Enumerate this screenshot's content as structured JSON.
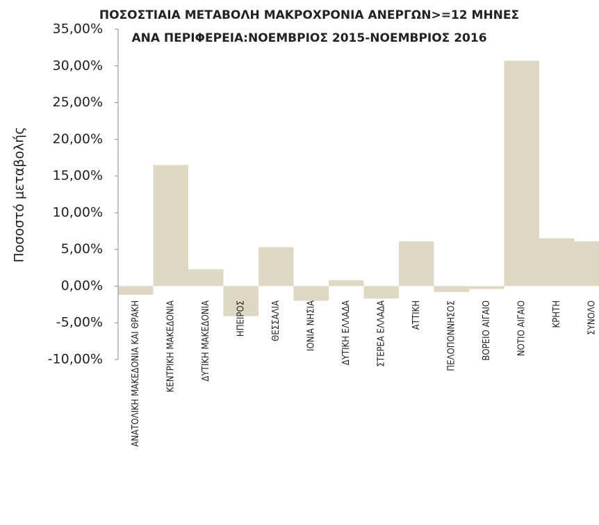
{
  "chart_data": {
    "type": "bar",
    "title": [
      "ΠΟΣΟΣΤΙΑΙΑ ΜΕΤΑΒΟΛΗ ΜΑΚΡΟΧΡΟΝΙΑ ΑΝΕΡΓΩΝ>=12 ΜΗΝΕΣ",
      "ΑΝΑ ΠΕΡΙΦΕΡΕΙΑ:ΝΟΕΜΒΡΙΟΣ 2015-ΝΟΕΜΒΡΙΟΣ 2016"
    ],
    "y_label": "Ποσοστό μεταβολής",
    "categories": [
      "ΑΝΑΤΟΛΙΚΗ ΜΑΚΕΔΟΝΙΑ ΚΑΙ ΘΡΑΚΗ",
      "ΚΕΝΤΡΙΚΗ ΜΑΚΕΔΟΝΙΑ",
      "ΔΥΤΙΚΗ ΜΑΚΕΔΟΝΙΑ",
      "ΗΠΕΙΡΟΣ",
      "ΘΕΣΣΑΛΙΑ",
      "ΙΟΝΙΑ ΝΗΣΙΑ",
      "ΔΥΤΙΚΗ ΕΛΛΑΔΑ",
      "ΣΤΕΡΕΑ ΕΛΛΑΔΑ",
      "ΑΤΤΙΚΗ",
      "ΠΕΛΟΠΟΝΝΗΣΟΣ",
      "ΒΟΡΕΙΟ ΑΙΓΑΙΟ",
      "ΝΟΤΙΟ ΑΙΓΑΙΟ",
      "ΚΡΗΤΗ",
      "ΣΥΝΟΛΟ"
    ],
    "values": [
      -1.2,
      16.5,
      2.3,
      -4.1,
      5.3,
      -2.0,
      0.8,
      -1.7,
      6.1,
      -0.8,
      -0.4,
      30.7,
      6.5,
      6.1
    ],
    "color": "#ddd9c3",
    "ylim": [
      -10,
      35
    ],
    "yticks": [
      {
        "value": -10,
        "label": "-10,00%"
      },
      {
        "value": -5,
        "label": "-5,00%"
      },
      {
        "value": 0,
        "label": "0,00%"
      },
      {
        "value": 5,
        "label": "5,00%"
      },
      {
        "value": 10,
        "label": "10,00%"
      },
      {
        "value": 15,
        "label": "15,00%"
      },
      {
        "value": 20,
        "label": "20,00%"
      },
      {
        "value": 25,
        "label": "25,00%"
      },
      {
        "value": 30,
        "label": "30,00%"
      },
      {
        "value": 35,
        "label": "35,00%"
      }
    ],
    "grid": false
  }
}
